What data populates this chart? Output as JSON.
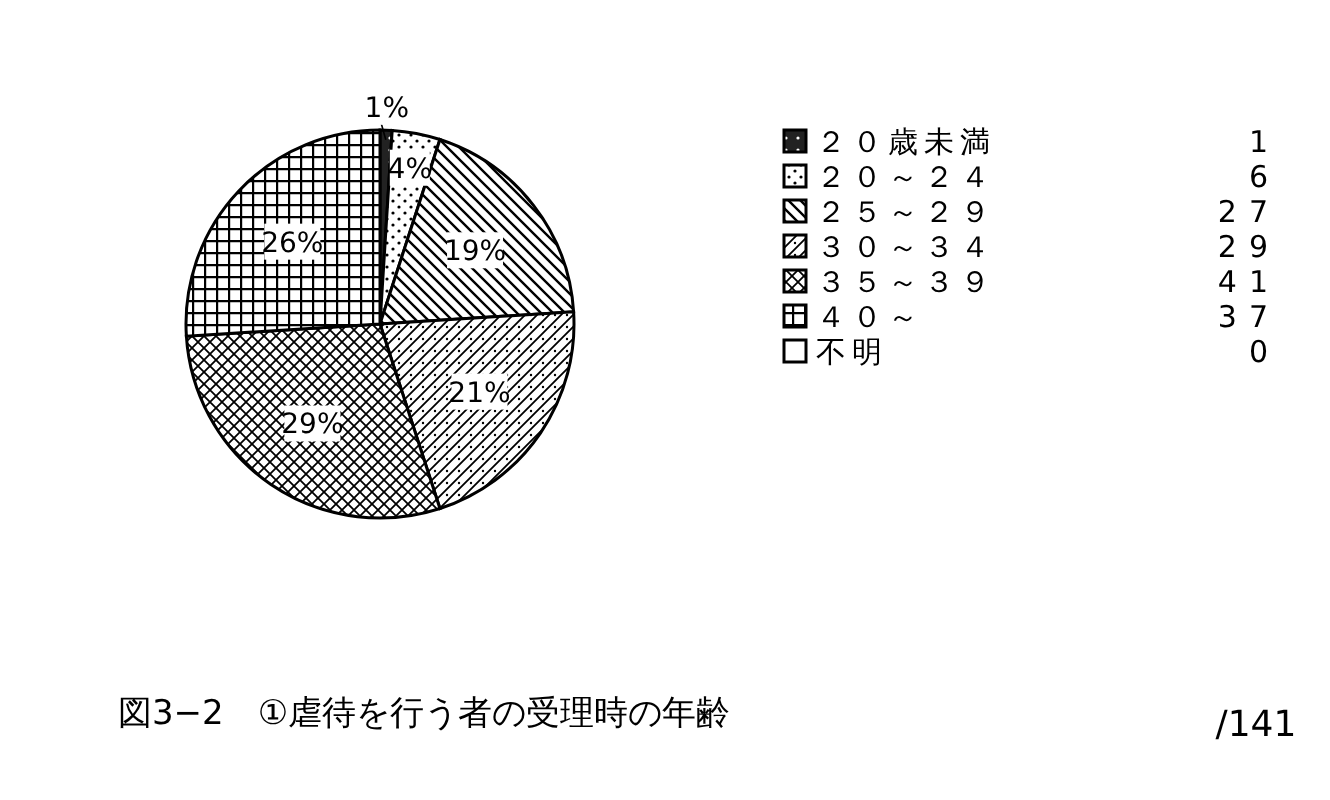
{
  "chart_data": {
    "type": "pie",
    "title": "図3−2　①虐待を行う者の受理時の年齢",
    "categories": [
      "２０歳未満",
      "２０～２４",
      "２５～２９",
      "３０～３４",
      "３５～３９",
      "４０～",
      "不明"
    ],
    "values": [
      1,
      4,
      19,
      21,
      29,
      26,
      0
    ],
    "value_labels": [
      "1%",
      "4%",
      "19%",
      "21%",
      "29%",
      "26%",
      null
    ],
    "legend": "right",
    "annotations": [
      "1",
      "6",
      "27",
      "29",
      "41",
      "37",
      "0",
      "/141"
    ]
  }
}
